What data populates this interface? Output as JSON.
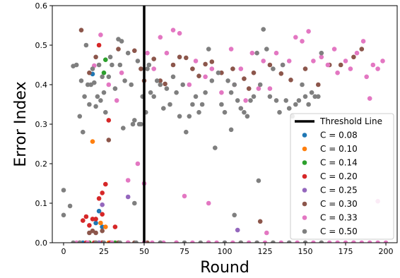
{
  "chart_data": {
    "type": "scatter",
    "title": "",
    "xlabel": "Round",
    "ylabel": "Error Index",
    "xlim": [
      -7,
      207
    ],
    "ylim": [
      0,
      0.6
    ],
    "xticks": [
      0,
      25,
      50,
      75,
      100,
      125,
      150,
      175,
      200
    ],
    "yticks": [
      0.0,
      0.1,
      0.2,
      0.3,
      0.4,
      0.5,
      0.6
    ],
    "grid": false,
    "legend_position": "lower-right",
    "threshold": {
      "name": "Threshold Line",
      "x": 50,
      "color": "#000000"
    },
    "series": [
      {
        "name": "C = 0.08",
        "color": "#1f77b4",
        "points": [
          [
            18,
            0.427
          ],
          [
            20,
            0.05
          ],
          [
            22,
            0.08
          ],
          [
            24,
            0.04
          ],
          [
            24,
            0.0
          ],
          [
            12,
            0.0
          ],
          [
            30,
            0.0
          ]
        ]
      },
      {
        "name": "C = 0.10",
        "color": "#ff7f0e",
        "points": [
          [
            18,
            0.256
          ],
          [
            23,
            0.05
          ],
          [
            26,
            0.04
          ],
          [
            20,
            0.0
          ],
          [
            28,
            0.0
          ]
        ]
      },
      {
        "name": "C = 0.14",
        "color": "#2ca02c",
        "points": [
          [
            26,
            0.463
          ],
          [
            25,
            0.43
          ],
          [
            22,
            0.0
          ],
          [
            16,
            0.0
          ],
          [
            32,
            0.0
          ]
        ]
      },
      {
        "name": "C = 0.20",
        "color": "#d62728",
        "points": [
          [
            22,
            0.5
          ],
          [
            28,
            0.31
          ],
          [
            24,
            0.126
          ],
          [
            26,
            0.148
          ],
          [
            22,
            0.112
          ],
          [
            14,
            0.066
          ],
          [
            18,
            0.06
          ],
          [
            20,
            0.06
          ],
          [
            16,
            0.044
          ],
          [
            12,
            0.056
          ],
          [
            24,
            0.072
          ],
          [
            32,
            0.04
          ],
          [
            10,
            0.0
          ],
          [
            14,
            0.0
          ],
          [
            19,
            0.0
          ],
          [
            24,
            0.0
          ],
          [
            29,
            0.0
          ],
          [
            34,
            0.0
          ],
          [
            40,
            0.0
          ]
        ]
      },
      {
        "name": "C = 0.25",
        "color": "#9467bd",
        "points": [
          [
            40,
            0.116
          ],
          [
            24,
            0.096
          ],
          [
            108,
            0.032
          ],
          [
            22,
            0.0
          ],
          [
            60,
            0.0
          ],
          [
            100,
            0.0
          ],
          [
            140,
            0.0
          ]
        ]
      },
      {
        "name": "C = 0.30",
        "color": "#8c564b",
        "points": [
          [
            11,
            0.538
          ],
          [
            16,
            0.43
          ],
          [
            20,
            0.47
          ],
          [
            28,
            0.26
          ],
          [
            34,
            0.49
          ],
          [
            44,
            0.486
          ],
          [
            48,
            0.44
          ],
          [
            50,
            0.41
          ],
          [
            56,
            0.465
          ],
          [
            60,
            0.41
          ],
          [
            63,
            0.402
          ],
          [
            68,
            0.45
          ],
          [
            72,
            0.47
          ],
          [
            76,
            0.468
          ],
          [
            80,
            0.44
          ],
          [
            84,
            0.422
          ],
          [
            88,
            0.452
          ],
          [
            92,
            0.458
          ],
          [
            98,
            0.43
          ],
          [
            105,
            0.44
          ],
          [
            112,
            0.415
          ],
          [
            115,
            0.39
          ],
          [
            118,
            0.43
          ],
          [
            128,
            0.45
          ],
          [
            135,
            0.428
          ],
          [
            141,
            0.412
          ],
          [
            150,
            0.44
          ],
          [
            158,
            0.4
          ],
          [
            165,
            0.45
          ],
          [
            172,
            0.45
          ],
          [
            180,
            0.47
          ],
          [
            185,
            0.49
          ],
          [
            16,
            0.025
          ],
          [
            18,
            0.03
          ],
          [
            20,
            0.025
          ],
          [
            24,
            0.03
          ],
          [
            34,
            0.0
          ],
          [
            44,
            0.0
          ],
          [
            52,
            0.0
          ],
          [
            70,
            0.0
          ],
          [
            90,
            0.0
          ],
          [
            110,
            0.0
          ],
          [
            122,
            0.054
          ],
          [
            130,
            0.0
          ],
          [
            160,
            0.0
          ],
          [
            180,
            0.0
          ]
        ]
      },
      {
        "name": "C = 0.33",
        "color": "#e377c2",
        "points": [
          [
            19,
            0.448
          ],
          [
            23,
            0.526
          ],
          [
            28,
            0.4
          ],
          [
            33,
            0.36
          ],
          [
            36,
            0.43
          ],
          [
            40,
            0.158
          ],
          [
            46,
            0.2
          ],
          [
            52,
            0.48
          ],
          [
            56,
            0.44
          ],
          [
            60,
            0.52
          ],
          [
            64,
            0.48
          ],
          [
            68,
            0.538
          ],
          [
            72,
            0.53
          ],
          [
            75,
            0.118
          ],
          [
            78,
            0.4
          ],
          [
            82,
            0.46
          ],
          [
            88,
            0.42
          ],
          [
            90,
            0.1
          ],
          [
            92,
            0.44
          ],
          [
            98,
            0.38
          ],
          [
            104,
            0.49
          ],
          [
            106,
            0.4
          ],
          [
            110,
            0.44
          ],
          [
            113,
            0.36
          ],
          [
            117,
            0.48
          ],
          [
            121,
            0.39
          ],
          [
            124,
            0.46
          ],
          [
            128,
            0.39
          ],
          [
            132,
            0.48
          ],
          [
            136,
            0.45
          ],
          [
            140,
            0.46
          ],
          [
            144,
            0.52
          ],
          [
            148,
            0.51
          ],
          [
            152,
            0.535
          ],
          [
            155,
            0.46
          ],
          [
            160,
            0.47
          ],
          [
            164,
            0.45
          ],
          [
            168,
            0.49
          ],
          [
            170,
            0.43
          ],
          [
            175,
            0.46
          ],
          [
            178,
            0.44
          ],
          [
            182,
            0.48
          ],
          [
            186,
            0.51
          ],
          [
            188,
            0.42
          ],
          [
            192,
            0.45
          ],
          [
            195,
            0.44
          ],
          [
            198,
            0.46
          ],
          [
            190,
            0.365
          ],
          [
            8,
            0.0
          ],
          [
            15,
            0.0
          ],
          [
            20,
            0.0
          ],
          [
            30,
            0.0
          ],
          [
            40,
            0.0
          ],
          [
            50,
            0.0
          ],
          [
            55,
            0.0
          ],
          [
            62,
            0.0
          ],
          [
            70,
            0.0
          ],
          [
            80,
            0.0
          ],
          [
            90,
            0.0
          ],
          [
            95,
            0.0
          ],
          [
            105,
            0.0
          ],
          [
            115,
            0.0
          ],
          [
            120,
            0.0
          ],
          [
            125,
            0.0
          ],
          [
            135,
            0.0
          ],
          [
            145,
            0.0
          ],
          [
            150,
            0.0
          ],
          [
            155,
            0.0
          ],
          [
            165,
            0.0
          ],
          [
            170,
            0.0
          ],
          [
            175,
            0.0
          ],
          [
            180,
            0.0
          ],
          [
            185,
            0.0
          ],
          [
            190,
            0.0
          ],
          [
            195,
            0.0
          ],
          [
            200,
            0.0
          ],
          [
            126,
            0.025
          ],
          [
            195,
            0.105
          ],
          [
            50,
            0.15
          ]
        ]
      },
      {
        "name": "C = 0.50",
        "color": "#7f7f7f",
        "points": [
          [
            0,
            0.133
          ],
          [
            0,
            0.07
          ],
          [
            4,
            0.093
          ],
          [
            6,
            0.447
          ],
          [
            8,
            0.45
          ],
          [
            10,
            0.32
          ],
          [
            11,
            0.41
          ],
          [
            12,
            0.28
          ],
          [
            13,
            0.37
          ],
          [
            14,
            0.5
          ],
          [
            15,
            0.4
          ],
          [
            16,
            0.35
          ],
          [
            17,
            0.4
          ],
          [
            18,
            0.44
          ],
          [
            19,
            0.405
          ],
          [
            20,
            0.345
          ],
          [
            21,
            0.37
          ],
          [
            22,
            0.45
          ],
          [
            23,
            0.36
          ],
          [
            24,
            0.42
          ],
          [
            25,
            0.38
          ],
          [
            26,
            0.33
          ],
          [
            28,
            0.42
          ],
          [
            29,
            0.47
          ],
          [
            30,
            0.45
          ],
          [
            32,
            0.39
          ],
          [
            34,
            0.515
          ],
          [
            35,
            0.45
          ],
          [
            36,
            0.51
          ],
          [
            37,
            0.29
          ],
          [
            38,
            0.41
          ],
          [
            40,
            0.48
          ],
          [
            42,
            0.4
          ],
          [
            43,
            0.3
          ],
          [
            44,
            0.31
          ],
          [
            46,
            0.46
          ],
          [
            47,
            0.3
          ],
          [
            48,
            0.3
          ],
          [
            49,
            0.37
          ],
          [
            51,
            0.33
          ],
          [
            52,
            0.44
          ],
          [
            53,
            0.45
          ],
          [
            54,
            0.38
          ],
          [
            56,
            0.37
          ],
          [
            58,
            0.41
          ],
          [
            60,
            0.4
          ],
          [
            62,
            0.34
          ],
          [
            64,
            0.39
          ],
          [
            66,
            0.35
          ],
          [
            68,
            0.42
          ],
          [
            70,
            0.38
          ],
          [
            72,
            0.32
          ],
          [
            74,
            0.4
          ],
          [
            76,
            0.28
          ],
          [
            78,
            0.32
          ],
          [
            80,
            0.35
          ],
          [
            82,
            0.37
          ],
          [
            84,
            0.33
          ],
          [
            86,
            0.35
          ],
          [
            88,
            0.38
          ],
          [
            90,
            0.49
          ],
          [
            92,
            0.41
          ],
          [
            94,
            0.24
          ],
          [
            96,
            0.43
          ],
          [
            98,
            0.35
          ],
          [
            100,
            0.33
          ],
          [
            102,
            0.41
          ],
          [
            104,
            0.38
          ],
          [
            106,
            0.4
          ],
          [
            108,
            0.36
          ],
          [
            110,
            0.34
          ],
          [
            112,
            0.33
          ],
          [
            114,
            0.32
          ],
          [
            116,
            0.36
          ],
          [
            118,
            0.37
          ],
          [
            120,
            0.48
          ],
          [
            121,
            0.157
          ],
          [
            122,
            0.4
          ],
          [
            124,
            0.54
          ],
          [
            126,
            0.49
          ],
          [
            128,
            0.37
          ],
          [
            130,
            0.44
          ],
          [
            132,
            0.36
          ],
          [
            134,
            0.33
          ],
          [
            136,
            0.45
          ],
          [
            138,
            0.36
          ],
          [
            140,
            0.34
          ],
          [
            142,
            0.32
          ],
          [
            144,
            0.35
          ],
          [
            146,
            0.36
          ],
          [
            148,
            0.4
          ],
          [
            150,
            0.37
          ],
          [
            152,
            0.35
          ],
          [
            154,
            0.38
          ],
          [
            156,
            0.37
          ],
          [
            158,
            0.37
          ],
          [
            160,
            0.48
          ],
          [
            104,
            0.286
          ],
          [
            106,
            0.07
          ],
          [
            44,
            0.1
          ],
          [
            6,
            0.0
          ],
          [
            10,
            0.0
          ],
          [
            20,
            0.0
          ],
          [
            25,
            0.0
          ],
          [
            35,
            0.0
          ],
          [
            45,
            0.0
          ],
          [
            60,
            0.0
          ],
          [
            75,
            0.0
          ],
          [
            85,
            0.0
          ],
          [
            100,
            0.0
          ],
          [
            110,
            0.0
          ],
          [
            120,
            0.0
          ],
          [
            130,
            0.0
          ],
          [
            140,
            0.0
          ],
          [
            150,
            0.0
          ],
          [
            160,
            0.0
          ]
        ]
      }
    ]
  }
}
